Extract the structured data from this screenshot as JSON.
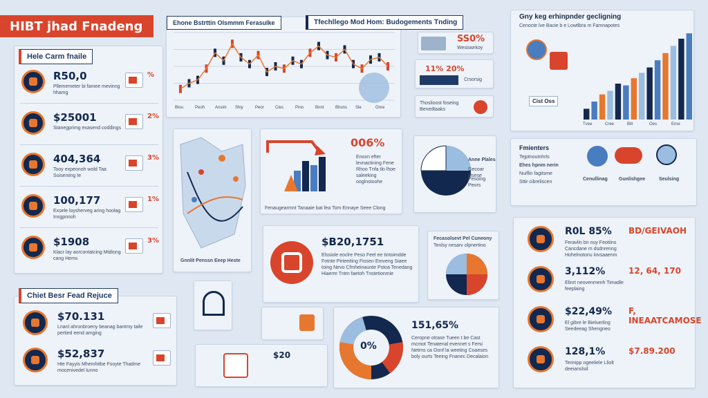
{
  "title": "HIBT jhad Fnadeng",
  "colors": {
    "accent": "#d8452c",
    "navy": "#13284f",
    "orange": "#e7772f",
    "blue": "#4a7cc0",
    "light_blue": "#9bbde0"
  },
  "left_panel": {
    "header": "Hele Carm fnaile",
    "rows": [
      {
        "value": "R50,0",
        "text": "Pllememeter bi famee  mevinng hhamg",
        "pct": "%",
        "icon": "shield-icon"
      },
      {
        "value": "$25001",
        "text": "Stanegprimg exasend coddings",
        "pct": "2%",
        "icon": "card-icon"
      },
      {
        "value": "404,364",
        "text": "Tooy expeonoh wold Taa Suiseniing te",
        "pct": "3%",
        "icon": "globe-icon"
      },
      {
        "value": "100,177",
        "text": "Exsele loysherveg aring hoolag Insgpnnoh",
        "pct": "1%",
        "icon": "lock-icon"
      },
      {
        "value": "$1908",
        "text": "Klacr lay aorcontatcing Mtdiong cang Hems",
        "pct": "3%",
        "icon": "wallet-icon"
      }
    ]
  },
  "bottom_left_panel": {
    "header": "Chiet Besr Fead Rejuce",
    "rows": [
      {
        "value": "$70.131",
        "text": "Lnanl ahronbroeny beanag bantmy taile pertied eend amging",
        "icon": "bitcoin-icon"
      },
      {
        "value": "$52,837",
        "text": "Hte Fayyis Mhemhitbe Fsoyte Thadme mocenivedel lunno",
        "icon": "tools-icon"
      }
    ]
  },
  "top_chart": {
    "header": "Ehone Bstrttin Olsmmm Ferasulke",
    "x_labels": [
      "Blou",
      "Peoh",
      "Ansim",
      "Shiy",
      "Peor",
      "Cles",
      "Pino",
      "Bnnt",
      "Bhuns",
      "Sle",
      "Onre"
    ],
    "chart_data": {
      "type": "line",
      "series": [
        {
          "values": [
            30,
            35,
            38,
            48,
            62,
            55,
            70,
            58,
            52,
            60,
            45,
            50,
            48,
            55,
            52,
            62,
            68,
            60,
            58,
            65,
            52,
            48,
            56,
            58,
            50
          ]
        }
      ]
    }
  },
  "mid_header": "Tfechllego Mod Hom: Budogements Tnding",
  "top_right_cards": [
    {
      "value": "SS0%",
      "text": "Wesiswrkoy"
    },
    {
      "value": "11% 20%",
      "text": "Crsorsig"
    },
    {
      "value": "",
      "text": "Thoslioost foseing Benedtaaks"
    }
  ],
  "top_right_chart": {
    "title": "Gny keg erhinpnder gecligning",
    "subtitle": "Cenocte lve Bacie b e Lowtlbra m Famnapotes",
    "label": "Cist Oss",
    "x_labels": [
      "Tvee",
      "Cree",
      "Bill",
      "Oes",
      "Erne"
    ],
    "chart_data": {
      "type": "bar",
      "series": [
        {
          "values": [
            12,
            20,
            28,
            32,
            40,
            38,
            46,
            52,
            58,
            66,
            74,
            82,
            90,
            96
          ]
        }
      ]
    }
  },
  "map_panel": {
    "caption": "Gnnlit Penssn Eeep Heste"
  },
  "center_panel": {
    "value": "006%",
    "text": "Enoxn efter levnactining Fene Rhoo Tnfa tlo lhoe saleeking ooglnstoohe",
    "footer": "Fenaugearmnt Tanaaie bat fea Tom Ennaye Seee Clong"
  },
  "pie_panel": {
    "labels": [
      "Anne Plales",
      "Gecoar Hsese",
      "Pesoing Peors"
    ]
  },
  "right_mid_panel": {
    "title": "Fmienters",
    "items": [
      "Tejptnoutnhrls",
      "Ehes hpnm nerin",
      "Nuiflin fagitsme",
      "Sttir cibreliscen"
    ],
    "labels": [
      "Cenullinag",
      "Gunlishgee",
      "Seulsing"
    ]
  },
  "value_panel": {
    "value": "$B20,1751",
    "text": "Elssiole eoclre Peso Feel ee tintoimdde Fotnte Pirteeiting Fiosen Emveng Siaee toing Nevo Cfmheinaunte Pstoa Tenedang Hiaerre Tntm faetoh Tnstetionmie"
  },
  "fee_panel": {
    "title": "Fecasolsevt Pel Cuneony",
    "subtitle": "Tenlsy nesarv olpnertino"
  },
  "donut_panel": {
    "center": "0%",
    "value": "151,65%",
    "text": "Ceropne otrase Tueen t be Cast mcmot Tenatenal evennet s Fersi Netrns ca Oonf la weeting Coaeses boly ourts Teeing Fnanec Decalaion"
  },
  "small_panel": {
    "value": "$20"
  },
  "right_bottom_panel": {
    "rows": [
      {
        "value": "R0L 85%",
        "side": "BD/GEIVAOH",
        "text": "Feravlin bn nuy Feotiins Cancdane m dsdnrenng Hohelnotonu lovsaaenm"
      },
      {
        "value": "3,112%",
        "side": "12, 64, 170",
        "text": "Elinrt neovenmenh Timadle feeplaing"
      },
      {
        "value": "$22,49%",
        "side": "F, INEAATCAMOSE",
        "text": "El gibre le Bieluerling Seedeeag Shengneo"
      },
      {
        "value": "128,1%",
        "side": "$7.89.200",
        "text": "Terinipp ngeeliele Lliolt deeianslsd"
      }
    ]
  }
}
